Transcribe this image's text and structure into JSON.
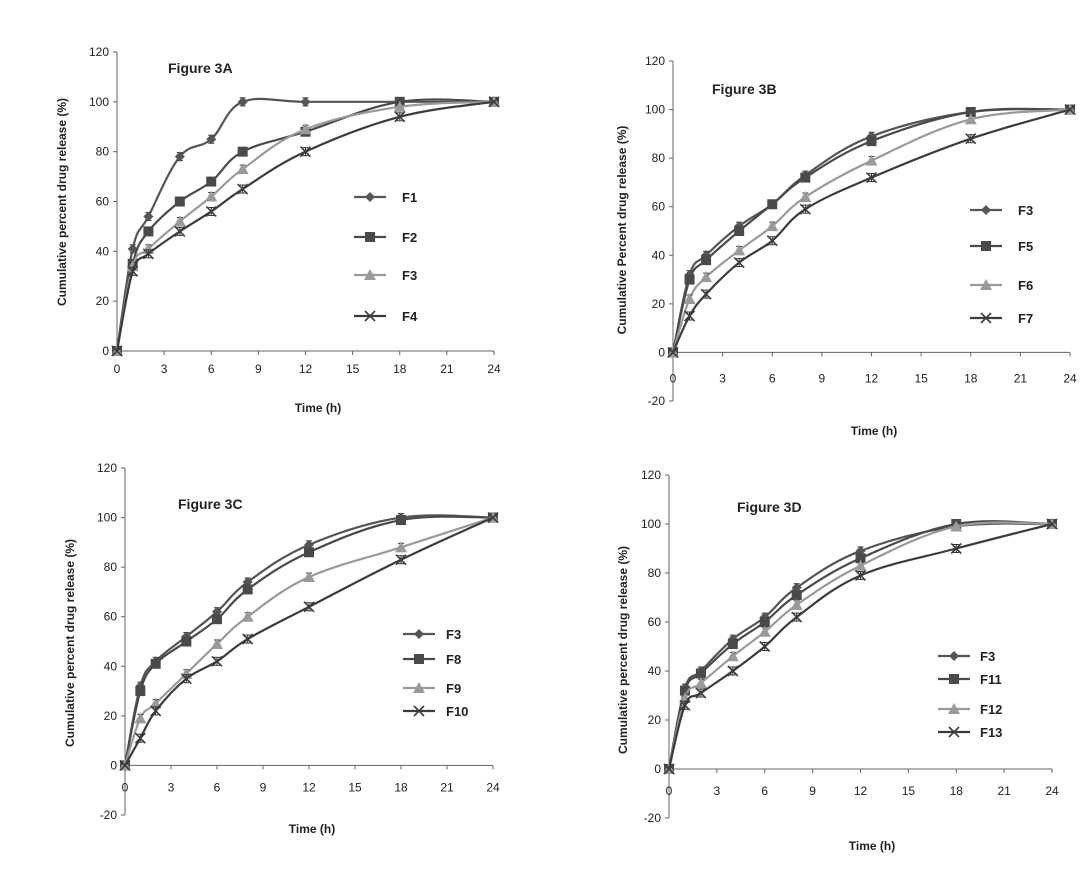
{
  "colors": {
    "dark": "#555555",
    "mid": "#4a4a4a",
    "light": "#9a9a9a",
    "darker": "#3c3c3c"
  },
  "chart_data": [
    {
      "type": "line",
      "title": "Figure 3A",
      "xlabel": "Time (h)",
      "ylabel": "Cumulative percent drug release (%)",
      "xlim": [
        0,
        24
      ],
      "ylim": [
        0,
        120
      ],
      "xticks": [
        0,
        3,
        6,
        9,
        12,
        15,
        18,
        21,
        24
      ],
      "yticks": [
        0,
        20,
        40,
        60,
        80,
        100,
        120
      ],
      "legend_position": "right",
      "series": [
        {
          "name": "F1",
          "marker": "diamond",
          "x": [
            0,
            1,
            2,
            4,
            6,
            8,
            12,
            18,
            24
          ],
          "y": [
            0,
            41,
            54,
            78,
            85,
            100,
            100,
            100,
            100
          ]
        },
        {
          "name": "F2",
          "marker": "square",
          "x": [
            0,
            1,
            2,
            4,
            6,
            8,
            12,
            18,
            24
          ],
          "y": [
            0,
            35,
            48,
            60,
            68,
            80,
            88,
            100,
            100
          ]
        },
        {
          "name": "F3",
          "marker": "triangle",
          "x": [
            0,
            1,
            2,
            4,
            6,
            8,
            12,
            18,
            24
          ],
          "y": [
            0,
            34,
            41,
            52,
            62,
            73,
            89,
            98,
            100
          ]
        },
        {
          "name": "F4",
          "marker": "x",
          "x": [
            0,
            1,
            2,
            4,
            6,
            8,
            12,
            18,
            24
          ],
          "y": [
            0,
            32,
            39,
            48,
            56,
            65,
            80,
            94,
            100
          ]
        }
      ]
    },
    {
      "type": "line",
      "title": "Figure 3B",
      "xlabel": "Time (h)",
      "ylabel": "Cumulative Percent drug release (%)",
      "xlim": [
        0,
        24
      ],
      "ylim": [
        -20,
        120
      ],
      "xticks": [
        0,
        3,
        6,
        9,
        12,
        15,
        18,
        21,
        24
      ],
      "yticks": [
        -20,
        0,
        20,
        40,
        60,
        80,
        100,
        120
      ],
      "legend_position": "right",
      "series": [
        {
          "name": "F3",
          "marker": "diamond",
          "x": [
            0,
            1,
            2,
            4,
            6,
            8,
            12,
            18,
            24
          ],
          "y": [
            0,
            32,
            40,
            52,
            61,
            73,
            89,
            99,
            100
          ]
        },
        {
          "name": "F5",
          "marker": "square",
          "x": [
            0,
            1,
            2,
            4,
            6,
            8,
            12,
            18,
            24
          ],
          "y": [
            0,
            30,
            38,
            50,
            61,
            72,
            87,
            99,
            100
          ]
        },
        {
          "name": "F6",
          "marker": "triangle",
          "x": [
            0,
            1,
            2,
            4,
            6,
            8,
            12,
            18,
            24
          ],
          "y": [
            0,
            22,
            31,
            42,
            52,
            64,
            79,
            96,
            100
          ]
        },
        {
          "name": "F7",
          "marker": "x",
          "x": [
            0,
            1,
            2,
            4,
            6,
            8,
            12,
            18,
            24
          ],
          "y": [
            0,
            15,
            24,
            37,
            46,
            59,
            72,
            88,
            100
          ]
        }
      ]
    },
    {
      "type": "line",
      "title": "Figure 3C",
      "xlabel": "Time (h)",
      "ylabel": "Cumulative percent drug release (%)",
      "xlim": [
        0,
        24
      ],
      "ylim": [
        -20,
        120
      ],
      "xticks": [
        0,
        3,
        6,
        9,
        12,
        15,
        18,
        21,
        24
      ],
      "yticks": [
        -20,
        0,
        20,
        40,
        60,
        80,
        100,
        120
      ],
      "legend_position": "right",
      "series": [
        {
          "name": "F3",
          "marker": "diamond",
          "x": [
            0,
            1,
            2,
            4,
            6,
            8,
            12,
            18,
            24
          ],
          "y": [
            0,
            32,
            42,
            52,
            62,
            74,
            89,
            100,
            100
          ]
        },
        {
          "name": "F8",
          "marker": "square",
          "x": [
            0,
            1,
            2,
            4,
            6,
            8,
            12,
            18,
            24
          ],
          "y": [
            0,
            30,
            41,
            50,
            59,
            71,
            86,
            99,
            100
          ]
        },
        {
          "name": "F9",
          "marker": "triangle",
          "x": [
            0,
            1,
            2,
            4,
            6,
            8,
            12,
            18,
            24
          ],
          "y": [
            0,
            19,
            25,
            37,
            49,
            60,
            76,
            88,
            100
          ]
        },
        {
          "name": "F10",
          "marker": "x",
          "x": [
            0,
            1,
            2,
            4,
            6,
            8,
            12,
            18,
            24
          ],
          "y": [
            0,
            11,
            22,
            35,
            42,
            51,
            64,
            83,
            100
          ]
        }
      ]
    },
    {
      "type": "line",
      "title": "Figure 3D",
      "xlabel": "Time (h)",
      "ylabel": "Cumulative percent drug release (%)",
      "xlim": [
        0,
        24
      ],
      "ylim": [
        -20,
        120
      ],
      "xticks": [
        0,
        3,
        6,
        9,
        12,
        15,
        18,
        21,
        24
      ],
      "yticks": [
        -20,
        0,
        20,
        40,
        60,
        80,
        100,
        120
      ],
      "legend_position": "right",
      "series": [
        {
          "name": "F3",
          "marker": "diamond",
          "x": [
            0,
            1,
            2,
            4,
            6,
            8,
            12,
            18,
            24
          ],
          "y": [
            0,
            33,
            40,
            53,
            62,
            74,
            89,
            99,
            100
          ]
        },
        {
          "name": "F11",
          "marker": "square",
          "x": [
            0,
            1,
            2,
            4,
            6,
            8,
            12,
            18,
            24
          ],
          "y": [
            0,
            32,
            39,
            51,
            60,
            71,
            86,
            100,
            100
          ]
        },
        {
          "name": "F12",
          "marker": "triangle",
          "x": [
            0,
            1,
            2,
            4,
            6,
            8,
            12,
            18,
            24
          ],
          "y": [
            0,
            29,
            35,
            46,
            56,
            67,
            83,
            99,
            100
          ]
        },
        {
          "name": "F13",
          "marker": "x",
          "x": [
            0,
            1,
            2,
            4,
            6,
            8,
            12,
            18,
            24
          ],
          "y": [
            0,
            26,
            31,
            40,
            50,
            62,
            79,
            90,
            100
          ]
        }
      ]
    }
  ]
}
